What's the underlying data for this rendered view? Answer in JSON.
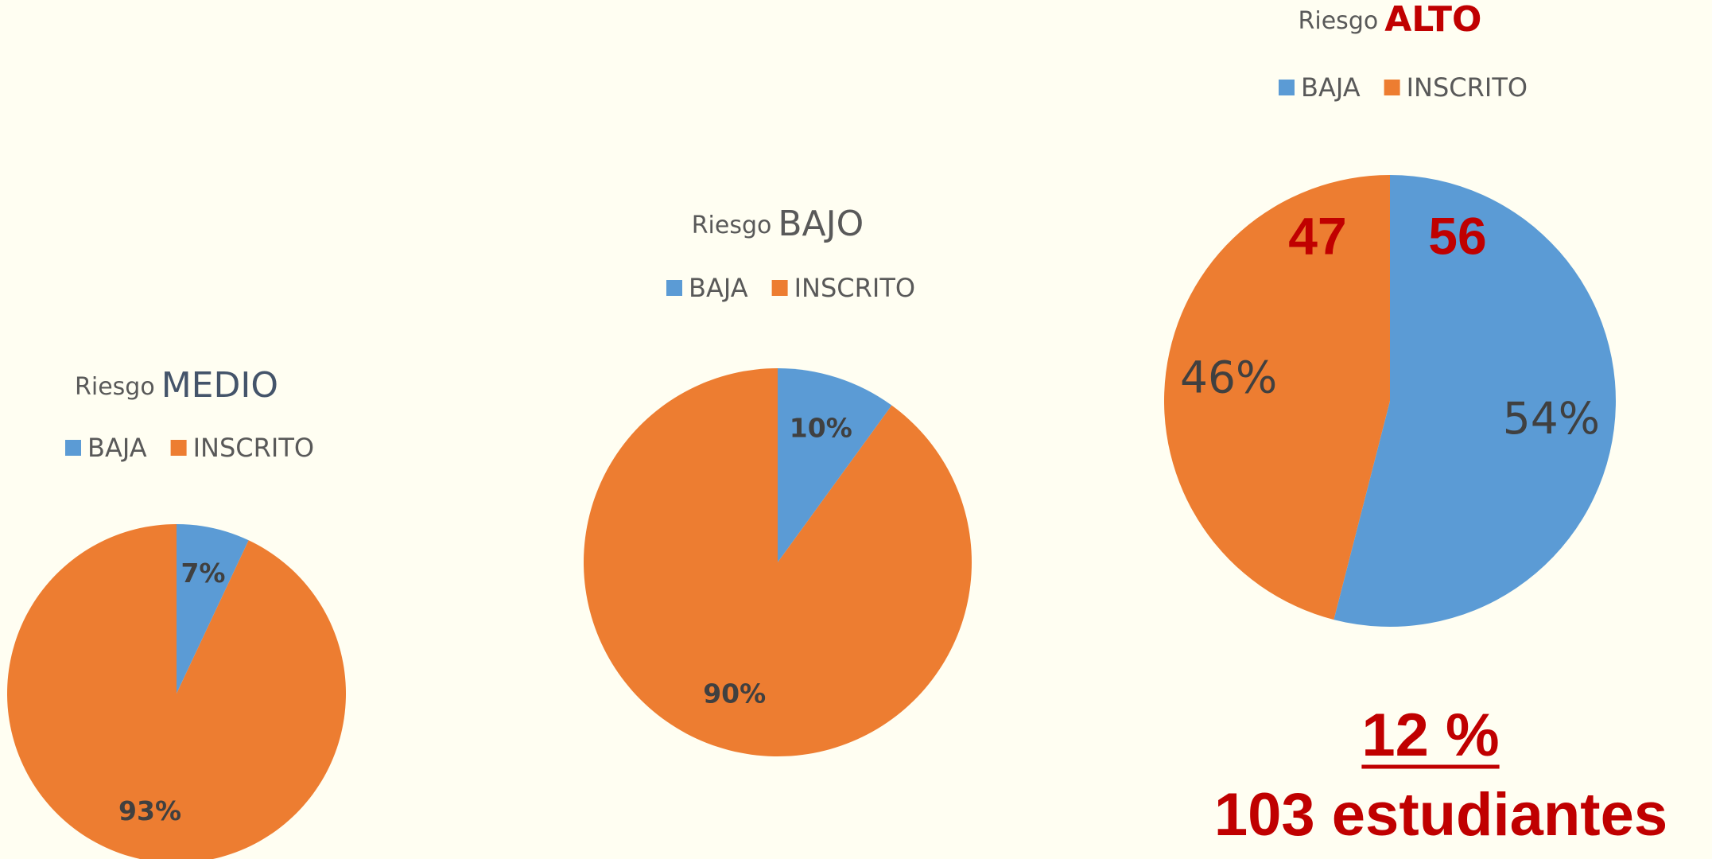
{
  "chart_data": [
    {
      "type": "pie",
      "title_parts": [
        "Riesgo",
        "MEDIO"
      ],
      "title_color": "#44546a",
      "series": [
        {
          "name": "BAJA",
          "color": "#5b9bd5"
        },
        {
          "name": "INSCRITO",
          "color": "#ed7d31"
        }
      ],
      "categories": [
        "BAJA",
        "INSCRITO"
      ],
      "values": [
        7,
        93
      ],
      "value_labels": [
        "7%",
        "93%"
      ]
    },
    {
      "type": "pie",
      "title_parts": [
        "Riesgo",
        "BAJO"
      ],
      "title_color": "#595959",
      "series": [
        {
          "name": "BAJA",
          "color": "#5b9bd5"
        },
        {
          "name": "INSCRITO",
          "color": "#ed7d31"
        }
      ],
      "categories": [
        "BAJA",
        "INSCRITO"
      ],
      "values": [
        10,
        90
      ],
      "value_labels": [
        "10%",
        "90%"
      ]
    },
    {
      "type": "pie",
      "title_parts": [
        "Riesgo",
        "ALTO"
      ],
      "title_color": "#c00000",
      "series": [
        {
          "name": "BAJA",
          "color": "#5b9bd5"
        },
        {
          "name": "INSCRITO",
          "color": "#ed7d31"
        }
      ],
      "categories": [
        "BAJA",
        "INSCRITO"
      ],
      "values": [
        54,
        46
      ],
      "value_labels": [
        "54%",
        "46%"
      ],
      "annotations": [
        "56",
        "47",
        "12 %",
        "103 estudiantes"
      ]
    }
  ]
}
